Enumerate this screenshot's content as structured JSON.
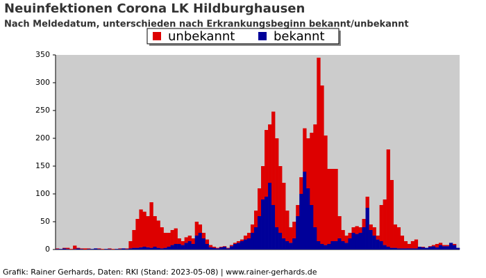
{
  "chart_data": {
    "type": "stacked_bar",
    "title": "Neuinfektionen Corona LK Hildburghausen",
    "subtitle": "Nach Meldedatum, unterschieden nach Erkrankungsbeginn bekannt/unbekannt",
    "footer": "Grafik: Rainer Gerhards, Daten: RKI (Stand: 2023-05-08) | www.rainer-gerhards.de",
    "categories": [
      null,
      null,
      null,
      null,
      null,
      null,
      null,
      null,
      null,
      null,
      null,
      null,
      null,
      null,
      null,
      null,
      null,
      null,
      null,
      null,
      null,
      null,
      null,
      null,
      null,
      null,
      null,
      null,
      null,
      null,
      null,
      null,
      null,
      null,
      null,
      null,
      null,
      null,
      null,
      null,
      null,
      null,
      null,
      null,
      null,
      null,
      null,
      null,
      null,
      null,
      null,
      null,
      null,
      null,
      null,
      null,
      null,
      null,
      null,
      null,
      null,
      null,
      null,
      null,
      null,
      null,
      null,
      null,
      null,
      null,
      null,
      null,
      null,
      null,
      null,
      null,
      null,
      null,
      null,
      null,
      null,
      null,
      null,
      null,
      null,
      null,
      null,
      null,
      null,
      null,
      null,
      null,
      null,
      null,
      null,
      null,
      null,
      null,
      null,
      null,
      null,
      null,
      null,
      null,
      null,
      null,
      null,
      null,
      null,
      null,
      null,
      null,
      null,
      null,
      null,
      null
    ],
    "series": [
      {
        "name": "unbekannt",
        "color": "#dd0000",
        "values": [
          1,
          0,
          1,
          2,
          1,
          6,
          1,
          1,
          2,
          1,
          0,
          0,
          1,
          1,
          0,
          1,
          1,
          0,
          1,
          0,
          1,
          13,
          32,
          52,
          68,
          63,
          56,
          82,
          55,
          49,
          38,
          27,
          25,
          27,
          28,
          10,
          7,
          10,
          10,
          10,
          25,
          15,
          10,
          8,
          4,
          2,
          1,
          1,
          1,
          1,
          2,
          2,
          3,
          3,
          7,
          10,
          15,
          30,
          50,
          60,
          120,
          105,
          168,
          160,
          120,
          100,
          55,
          28,
          30,
          20,
          30,
          78,
          90,
          130,
          185,
          330,
          285,
          197,
          135,
          130,
          130,
          40,
          20,
          13,
          10,
          10,
          14,
          10,
          15,
          20,
          10,
          15,
          7,
          65,
          82,
          175,
          122,
          42,
          38,
          23,
          13,
          8,
          13,
          16,
          0,
          1,
          0,
          1,
          2,
          6,
          4,
          2,
          2,
          0,
          2,
          0
        ]
      },
      {
        "name": "bekannt",
        "color": "#000099",
        "values": [
          1,
          1,
          2,
          1,
          0,
          1,
          2,
          1,
          0,
          1,
          1,
          2,
          1,
          0,
          1,
          1,
          0,
          1,
          1,
          2,
          1,
          2,
          3,
          3,
          4,
          5,
          4,
          3,
          5,
          3,
          2,
          3,
          5,
          8,
          10,
          10,
          8,
          12,
          15,
          10,
          25,
          30,
          20,
          10,
          4,
          3,
          2,
          4,
          5,
          2,
          6,
          10,
          12,
          15,
          18,
          20,
          30,
          40,
          60,
          90,
          95,
          120,
          80,
          40,
          30,
          20,
          15,
          12,
          20,
          60,
          100,
          140,
          110,
          80,
          40,
          15,
          10,
          8,
          10,
          15,
          15,
          20,
          15,
          12,
          20,
          30,
          28,
          30,
          40,
          75,
          35,
          25,
          18,
          15,
          8,
          5,
          3,
          3,
          2,
          2,
          2,
          2,
          2,
          2,
          5,
          4,
          3,
          5,
          6,
          4,
          8,
          6,
          6,
          12,
          8,
          3
        ]
      }
    ],
    "ylim": [
      0,
      350
    ],
    "yticks": [
      0,
      50,
      100,
      150,
      200,
      250,
      300,
      350
    ],
    "legend": "top",
    "grid": false
  }
}
